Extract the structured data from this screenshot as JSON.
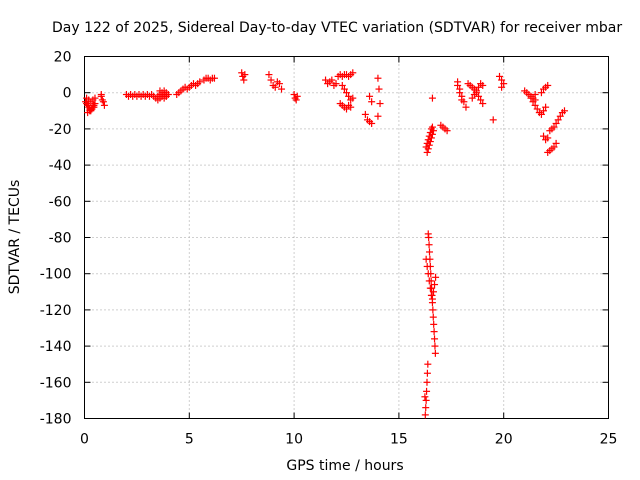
{
  "chart_data": {
    "type": "scatter",
    "title": "Day 122 of 2025, Sidereal Day-to-day VTEC variation (SDTVAR) for receiver mbar",
    "xlabel": "GPS time / hours",
    "ylabel": "SDTVAR / TECUs",
    "xlim": [
      0,
      25
    ],
    "ylim": [
      -180,
      20
    ],
    "xticks": [
      0,
      5,
      10,
      15,
      20,
      25
    ],
    "yticks": [
      -180,
      -160,
      -140,
      -120,
      -100,
      -80,
      -60,
      -40,
      -20,
      0,
      20
    ],
    "grid": true,
    "marker": "+",
    "color": "#ff0000",
    "series": [
      {
        "name": "SDTVAR",
        "x": [
          0.05,
          0.1,
          0.15,
          0.2,
          0.25,
          0.3,
          0.35,
          0.4,
          0.45,
          0.5,
          0.1,
          0.2,
          0.3,
          0.4,
          0.5,
          0.15,
          0.25,
          0.35,
          0.45,
          0.8,
          0.85,
          0.9,
          0.95,
          0.8,
          2.0,
          2.1,
          2.2,
          2.3,
          2.4,
          2.5,
          2.6,
          2.7,
          2.8,
          2.9,
          3.0,
          3.1,
          3.2,
          3.3,
          3.4,
          3.5,
          3.6,
          3.7,
          3.8,
          3.9,
          4.0,
          3.5,
          3.6,
          3.7,
          3.8,
          3.9,
          3.6,
          3.7,
          3.8,
          3.9,
          4.4,
          4.5,
          4.6,
          4.7,
          4.8,
          4.9,
          5.0,
          5.1,
          5.2,
          5.3,
          5.4,
          5.5,
          5.7,
          5.8,
          5.9,
          6.0,
          6.1,
          6.2,
          7.5,
          7.55,
          7.6,
          7.65,
          8.8,
          8.9,
          9.0,
          9.1,
          9.2,
          9.3,
          9.4,
          10.0,
          10.05,
          10.1,
          10.15,
          11.5,
          11.6,
          11.7,
          11.8,
          11.9,
          12.0,
          12.1,
          12.2,
          12.3,
          12.4,
          12.5,
          12.6,
          12.7,
          12.8,
          12.3,
          12.4,
          12.5,
          12.6,
          12.7,
          12.8,
          12.2,
          12.3,
          12.4,
          12.5,
          12.6,
          12.7,
          13.4,
          13.5,
          13.6,
          13.7,
          13.6,
          13.7,
          14.0,
          14.05,
          14.1,
          14.0,
          16.3,
          16.35,
          16.4,
          16.45,
          16.5,
          16.55,
          16.6,
          16.35,
          16.4,
          16.45,
          16.5,
          16.55,
          16.6,
          16.65,
          16.3,
          16.35,
          16.4,
          16.45,
          16.5,
          16.55,
          16.6,
          16.65,
          16.7,
          16.75,
          16.4,
          16.42,
          16.44,
          16.46,
          16.48,
          16.5,
          16.52,
          16.54,
          16.56,
          16.58,
          16.6,
          16.62,
          16.64,
          16.66,
          16.68,
          16.7,
          16.72,
          16.74,
          16.38,
          16.36,
          16.34,
          16.32,
          16.3,
          16.28,
          16.26,
          16.24,
          16.6,
          17.0,
          17.1,
          17.2,
          17.3,
          17.8,
          17.9,
          18.0,
          18.1,
          18.2,
          17.8,
          17.9,
          18.0,
          18.3,
          18.4,
          18.5,
          18.6,
          18.7,
          18.8,
          18.9,
          19.0,
          18.5,
          18.6,
          18.7,
          18.8,
          18.9,
          19.0,
          19.5,
          19.8,
          19.9,
          20.0,
          19.9,
          21.0,
          21.1,
          21.2,
          21.3,
          21.4,
          21.5,
          21.5,
          21.6,
          21.7,
          21.8,
          21.9,
          22.0,
          21.3,
          21.4,
          21.5,
          21.8,
          21.9,
          22.0,
          22.1,
          21.9,
          22.0,
          22.1,
          22.2,
          22.3,
          22.4,
          22.5,
          22.6,
          22.7,
          22.8,
          22.9,
          22.1,
          22.2,
          22.3,
          22.4,
          22.5
        ],
        "y": [
          -5,
          -6,
          -7,
          -8,
          -9,
          -10,
          -9,
          -8,
          -7,
          -6,
          -3,
          -4,
          -5,
          -4,
          -3,
          -11,
          -10,
          -9,
          -8,
          -2,
          -4,
          -5,
          -7,
          -1,
          -1,
          -2,
          -1,
          -2,
          -1,
          -2,
          -1,
          -2,
          -1,
          -2,
          -1,
          -2,
          -1,
          -2,
          -3,
          -2,
          -1,
          -2,
          -3,
          -2,
          -1,
          -4,
          -3,
          -2,
          -1,
          -2,
          1,
          0,
          1,
          0,
          -1,
          0,
          1,
          2,
          3,
          2,
          3,
          4,
          5,
          4,
          5,
          6,
          7,
          8,
          8,
          7,
          8,
          8,
          11,
          9,
          7,
          10,
          10,
          7,
          4,
          3,
          6,
          5,
          2,
          -1,
          -3,
          -4,
          -2,
          7,
          5,
          6,
          7,
          4,
          5,
          9,
          10,
          9,
          10,
          10,
          9,
          10,
          11,
          4,
          2,
          0,
          -2,
          -4,
          -3,
          -6,
          -7,
          -8,
          -9,
          -7,
          -8,
          -12,
          -15,
          -16,
          -17,
          -2,
          -5,
          8,
          2,
          -6,
          -13,
          -30,
          -28,
          -26,
          -24,
          -22,
          -20,
          -19,
          -33,
          -31,
          -29,
          -27,
          -25,
          -23,
          -21,
          -92,
          -96,
          -100,
          -104,
          -108,
          -112,
          -114,
          -110,
          -106,
          -102,
          -78,
          -80,
          -84,
          -88,
          -92,
          -96,
          -100,
          -104,
          -108,
          -112,
          -116,
          -120,
          -124,
          -128,
          -132,
          -136,
          -140,
          -144,
          -150,
          -155,
          -160,
          -165,
          -170,
          -174,
          -178,
          -168,
          -3,
          -18,
          -19,
          -20,
          -21,
          6,
          2,
          -2,
          -5,
          -8,
          4,
          0,
          -4,
          5,
          4,
          3,
          2,
          0,
          -2,
          -4,
          -6,
          -3,
          -1,
          1,
          3,
          5,
          4,
          -15,
          9,
          7,
          5,
          3,
          1,
          0,
          -1,
          -2,
          -3,
          -4,
          -7,
          -9,
          -11,
          -12,
          -10,
          -8,
          -3,
          -5,
          -1,
          0,
          2,
          3,
          4,
          -24,
          -26,
          -25,
          -21,
          -20,
          -19,
          -17,
          -15,
          -13,
          -11,
          -10,
          -33,
          -32,
          -31,
          -30,
          -28
        ]
      }
    ]
  }
}
